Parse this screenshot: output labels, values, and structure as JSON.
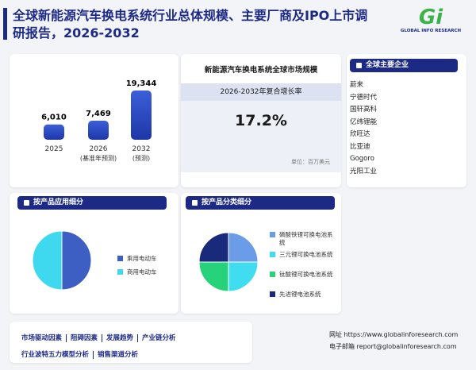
{
  "header": {
    "title": "全球新能源汽车换电系统行业总体规模、主要厂商及IPO上市调研报告，2026-2032",
    "logo_mark": "Gi",
    "logo_text": "GLOBAL INFO RESEARCH"
  },
  "chart_data": [
    {
      "type": "bar",
      "categories": [
        "2025",
        "2026",
        "2032"
      ],
      "category_notes": [
        null,
        "(基准年预测)",
        "(预测)"
      ],
      "values": [
        6010,
        7469,
        19344
      ],
      "value_labels": [
        "6,010",
        "7,469",
        "19,344"
      ],
      "color": "#1e37a8"
    },
    {
      "type": "pie",
      "title": "按产品应用细分",
      "categories": [
        "乘用电动车",
        "商用电动车"
      ],
      "values": [
        50,
        50
      ],
      "colors": [
        "#3d5fc4",
        "#3fd9ef"
      ]
    },
    {
      "type": "pie",
      "title": "按产品分类细分",
      "categories": [
        "磷酸铁锂可换电池系统",
        "三元锂可换电池系统",
        "钛酸锂可换电池系统",
        "先进锂电池系统"
      ],
      "values": [
        25,
        25,
        25,
        25
      ],
      "colors": [
        "#6b9ce8",
        "#40dcf0",
        "#27d37a",
        "#1a2a7a"
      ]
    }
  ],
  "market": {
    "title": "新能源汽车换电系统全球市场规模",
    "cagr_label": "2026-2032年复合增长率",
    "cagr": "17.2%",
    "unit": "单位：百万美元"
  },
  "companies": {
    "title": "全球主要企业",
    "items": [
      "蔚来",
      "宁德时代",
      "国轩高科",
      "亿纬锂能",
      "欣旺达",
      "比亚迪",
      "Gogoro",
      "光阳工业"
    ]
  },
  "footer": {
    "topics": [
      "市场驱动因素",
      "阻碍因素",
      "发展趋势",
      "产业链分析",
      "行业波特五力模型分析",
      "销售渠道分析"
    ],
    "website_label": "网址",
    "website": "https://www.globalinforesearch.com",
    "email_label": "电子邮箱",
    "email": "report@globalinforesearch.com"
  }
}
